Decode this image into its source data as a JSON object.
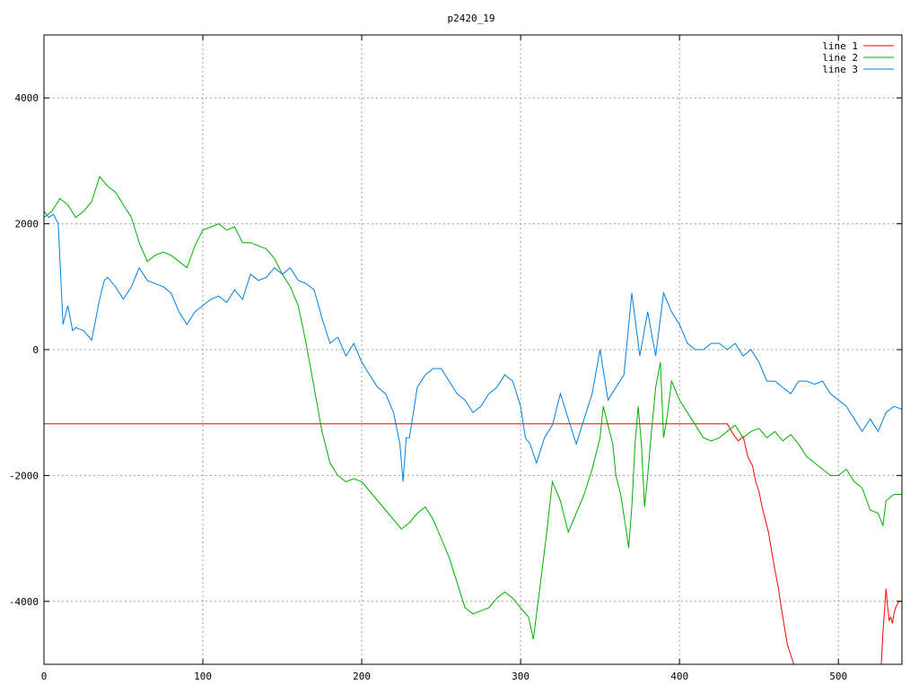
{
  "chart_data": {
    "type": "line",
    "title": "p2420_19",
    "xlabel": "",
    "ylabel": "",
    "xlim": [
      0,
      540
    ],
    "ylim": [
      -5000,
      5000
    ],
    "x_ticks": [
      0,
      100,
      200,
      300,
      400,
      500
    ],
    "y_ticks": [
      -4000,
      -2000,
      0,
      2000,
      4000
    ],
    "x_tick_labels": [
      "0",
      "100",
      "200",
      "300",
      "400",
      "500"
    ],
    "y_tick_labels": [
      "-4000",
      "-2000",
      "0",
      "2000",
      "4000"
    ],
    "grid": true,
    "legend_position": "top-right",
    "series": [
      {
        "name": "line 1",
        "color": "#ff0000",
        "x": [
          0,
          100,
          200,
          300,
          400,
          430,
          434,
          437,
          440,
          443,
          446,
          448,
          450,
          452,
          454,
          456,
          458,
          460,
          462,
          464,
          466,
          468,
          470,
          472,
          473,
          527,
          528,
          530,
          531,
          532,
          533,
          534,
          535,
          536,
          537,
          538,
          540
        ],
        "y": [
          -1180,
          -1180,
          -1180,
          -1180,
          -1180,
          -1180,
          -1350,
          -1450,
          -1380,
          -1700,
          -1850,
          -2100,
          -2250,
          -2500,
          -2700,
          -2900,
          -3200,
          -3500,
          -3750,
          -4100,
          -4400,
          -4700,
          -4850,
          -5000,
          -5000,
          -5000,
          -4500,
          -3800,
          -4100,
          -4300,
          -4250,
          -4350,
          -4200,
          -4100,
          -4050,
          -4000,
          -4000
        ]
      },
      {
        "name": "line 2",
        "color": "#00b000",
        "x": [
          0,
          5,
          10,
          15,
          20,
          25,
          30,
          35,
          40,
          45,
          50,
          55,
          60,
          65,
          70,
          75,
          80,
          85,
          90,
          95,
          100,
          105,
          110,
          115,
          120,
          125,
          130,
          135,
          140,
          145,
          150,
          155,
          160,
          165,
          170,
          175,
          180,
          185,
          190,
          195,
          200,
          210,
          220,
          225,
          230,
          235,
          240,
          245,
          250,
          255,
          260,
          265,
          270,
          275,
          280,
          285,
          290,
          295,
          300,
          305,
          308,
          312,
          316,
          320,
          325,
          330,
          335,
          340,
          345,
          350,
          352,
          355,
          358,
          360,
          363,
          366,
          368,
          370,
          372,
          374,
          376,
          378,
          380,
          382,
          385,
          388,
          390,
          392,
          395,
          400,
          405,
          410,
          415,
          420,
          425,
          430,
          435,
          440,
          445,
          450,
          455,
          460,
          465,
          470,
          475,
          480,
          485,
          490,
          495,
          500,
          505,
          510,
          515,
          520,
          525,
          528,
          530,
          535,
          540
        ],
        "y": [
          2100,
          2200,
          2400,
          2300,
          2100,
          2200,
          2350,
          2750,
          2600,
          2500,
          2300,
          2100,
          1700,
          1400,
          1500,
          1550,
          1500,
          1400,
          1300,
          1650,
          1900,
          1950,
          2000,
          1900,
          1950,
          1700,
          1700,
          1650,
          1600,
          1450,
          1200,
          1000,
          700,
          100,
          -600,
          -1300,
          -1800,
          -2000,
          -2100,
          -2050,
          -2100,
          -2400,
          -2700,
          -2850,
          -2750,
          -2600,
          -2500,
          -2700,
          -3000,
          -3300,
          -3700,
          -4100,
          -4200,
          -4150,
          -4100,
          -3950,
          -3850,
          -3950,
          -4100,
          -4250,
          -4600,
          -3800,
          -3000,
          -2100,
          -2400,
          -2900,
          -2600,
          -2300,
          -1900,
          -1400,
          -900,
          -1200,
          -1500,
          -2000,
          -2300,
          -2800,
          -3150,
          -2500,
          -1500,
          -900,
          -1500,
          -2500,
          -2000,
          -1400,
          -600,
          -200,
          -1400,
          -1100,
          -500,
          -800,
          -1000,
          -1200,
          -1400,
          -1450,
          -1400,
          -1300,
          -1200,
          -1400,
          -1300,
          -1250,
          -1400,
          -1300,
          -1450,
          -1350,
          -1500,
          -1700,
          -1800,
          -1900,
          -2000,
          -2000,
          -1900,
          -2100,
          -2200,
          -2550,
          -2600,
          -2800,
          -2400,
          -2300,
          -2300
        ]
      },
      {
        "name": "line 3",
        "color": "#0080e0",
        "x": [
          0,
          3,
          6,
          9,
          12,
          15,
          18,
          20,
          25,
          30,
          35,
          38,
          40,
          45,
          50,
          55,
          60,
          65,
          70,
          75,
          80,
          85,
          90,
          95,
          100,
          105,
          110,
          115,
          120,
          125,
          130,
          135,
          140,
          145,
          150,
          155,
          160,
          165,
          170,
          175,
          180,
          185,
          190,
          195,
          200,
          205,
          210,
          215,
          220,
          224,
          226,
          228,
          230,
          235,
          240,
          245,
          250,
          255,
          260,
          265,
          270,
          275,
          280,
          285,
          290,
          295,
          300,
          303,
          306,
          310,
          315,
          320,
          325,
          330,
          335,
          340,
          345,
          350,
          355,
          360,
          365,
          370,
          375,
          380,
          385,
          390,
          395,
          400,
          405,
          410,
          415,
          420,
          425,
          430,
          435,
          440,
          445,
          450,
          455,
          460,
          465,
          470,
          475,
          480,
          485,
          490,
          495,
          500,
          505,
          510,
          515,
          520,
          525,
          530,
          535,
          540
        ],
        "y": [
          2200,
          2100,
          2150,
          2000,
          400,
          700,
          300,
          350,
          300,
          150,
          800,
          1100,
          1150,
          1000,
          800,
          1000,
          1300,
          1100,
          1050,
          1000,
          900,
          600,
          400,
          600,
          700,
          800,
          850,
          750,
          950,
          800,
          1200,
          1100,
          1150,
          1300,
          1200,
          1300,
          1100,
          1050,
          950,
          500,
          100,
          200,
          -100,
          100,
          -200,
          -400,
          -600,
          -700,
          -1000,
          -1500,
          -2100,
          -1400,
          -1400,
          -600,
          -400,
          -300,
          -300,
          -500,
          -700,
          -800,
          -1000,
          -900,
          -700,
          -600,
          -400,
          -500,
          -900,
          -1400,
          -1500,
          -1800,
          -1400,
          -1200,
          -700,
          -1100,
          -1500,
          -1100,
          -700,
          0,
          -800,
          -600,
          -400,
          900,
          -100,
          600,
          -100,
          900,
          600,
          400,
          100,
          0,
          0,
          100,
          100,
          0,
          100,
          -100,
          0,
          -200,
          -500,
          -500,
          -600,
          -700,
          -500,
          -500,
          -550,
          -500,
          -700,
          -800,
          -900,
          -1100,
          -1300,
          -1100,
          -1300,
          -1000,
          -900,
          -950
        ]
      }
    ]
  }
}
